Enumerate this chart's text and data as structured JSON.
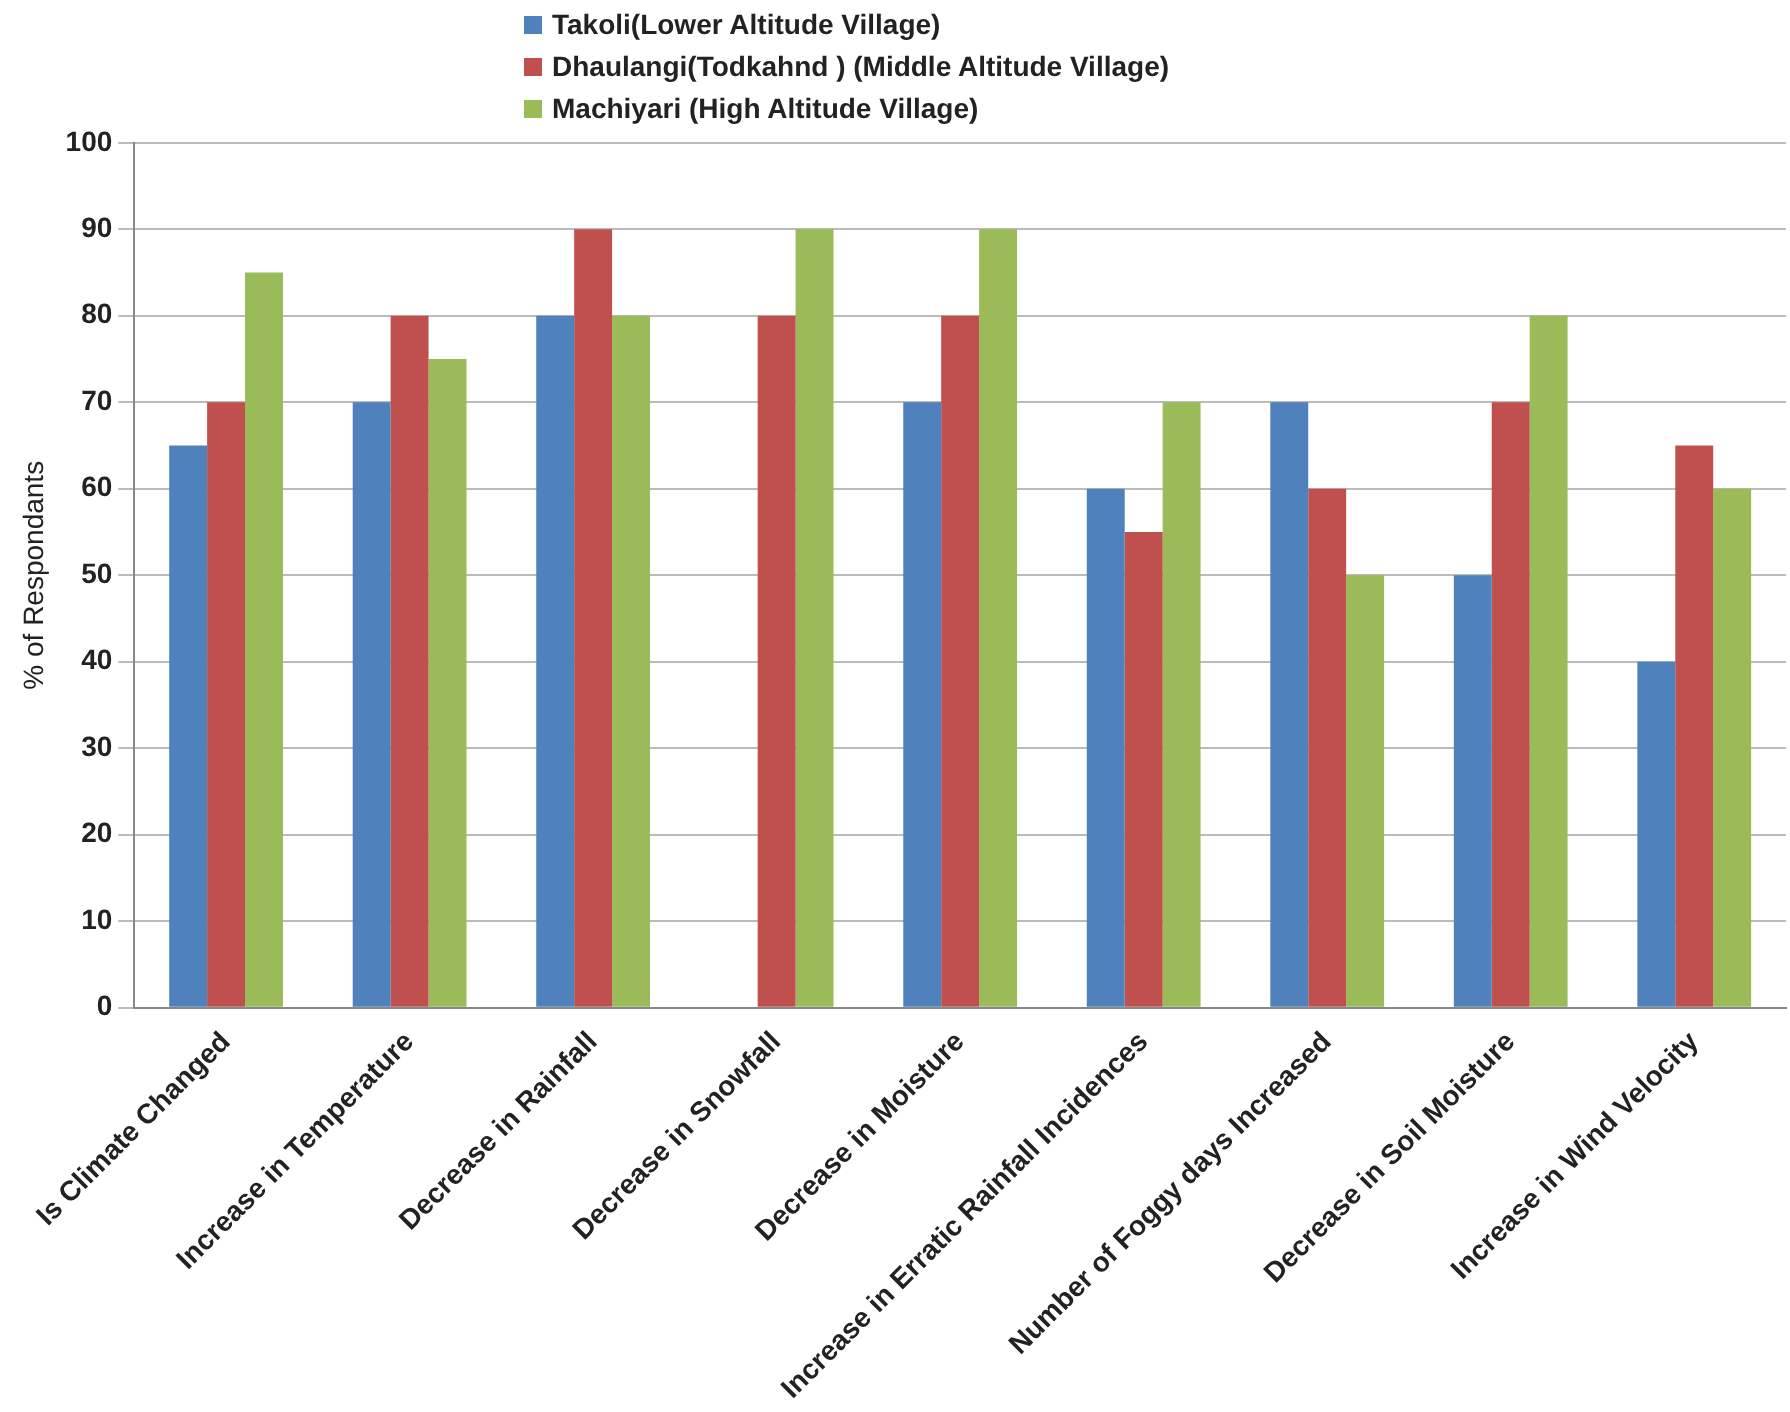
{
  "chart_data": {
    "type": "bar",
    "ylabel": "% of Respondants",
    "categories": [
      "Is Climate Changed",
      "Increase in Temperature",
      "Decrease in Rainfall",
      "Decrease in Snowfall",
      "Decrease in Moisture",
      "Increase in Erratic Rainfall Incidences",
      "Number of Foggy days Increased",
      "Decrease in Soil Moisture",
      "Increase in Wind Velocity"
    ],
    "series": [
      {
        "name": "Takoli(Lower Altitude Village)",
        "color": "#4f81bd",
        "values": [
          65,
          70,
          80,
          0,
          70,
          60,
          70,
          50,
          40
        ]
      },
      {
        "name": "Dhaulangi(Todkahnd ) (Middle Altitude Village)",
        "color": "#c0504d",
        "values": [
          70,
          80,
          90,
          80,
          80,
          55,
          60,
          70,
          65
        ]
      },
      {
        "name": "Machiyari (High Altitude Village)",
        "color": "#9bbb59",
        "values": [
          85,
          75,
          80,
          90,
          90,
          70,
          50,
          80,
          60
        ]
      }
    ],
    "ylim": [
      0,
      100
    ],
    "yticks": [
      0,
      10,
      20,
      30,
      40,
      50,
      60,
      70,
      80,
      90,
      100
    ],
    "grid": "y",
    "legend": "top"
  }
}
